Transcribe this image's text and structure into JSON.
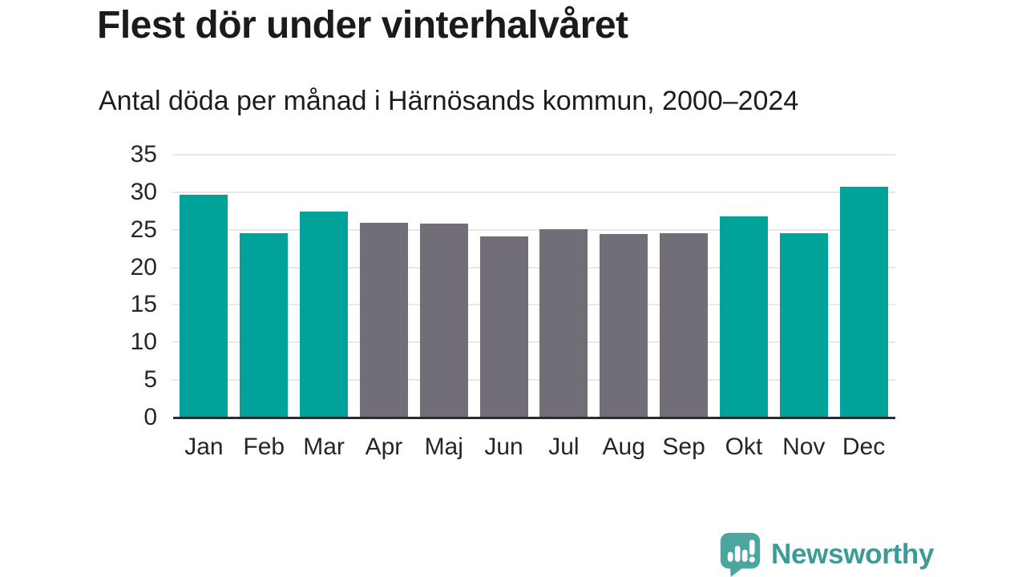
{
  "title": "Flest dör under vinterhalvåret",
  "subtitle": "Antal döda per månad i Härnösands kommun, 2000–2024",
  "logo": {
    "text": "Newsworthy"
  },
  "colors": {
    "highlight_teal": "#00A299",
    "muted_gray": "#716E77",
    "axis_dark": "#2E2C33",
    "gridline_gray": "#E8E8E8",
    "text_dark": "#1B1B1B",
    "logo_teal": "#3A9C95",
    "logo_icon_teal": "#4AA69F"
  },
  "chart_data": {
    "type": "bar",
    "title": "Flest dör under vinterhalvåret",
    "subtitle": "Antal döda per månad i Härnösands kommun, 2000–2024",
    "categories": [
      "Jan",
      "Feb",
      "Mar",
      "Apr",
      "Maj",
      "Jun",
      "Jul",
      "Aug",
      "Sep",
      "Okt",
      "Nov",
      "Dec"
    ],
    "values": [
      29.7,
      24.5,
      27.4,
      25.9,
      25.8,
      24.1,
      25.1,
      24.4,
      24.5,
      26.8,
      24.5,
      30.7
    ],
    "highlighted": [
      true,
      true,
      true,
      false,
      false,
      false,
      false,
      false,
      false,
      true,
      true,
      true
    ],
    "xlabel": "",
    "ylabel": "",
    "ylim": [
      0,
      35
    ],
    "yticks": [
      0,
      5,
      10,
      15,
      20,
      25,
      30,
      35
    ],
    "grid": "horizontal-on",
    "legend": "none"
  }
}
